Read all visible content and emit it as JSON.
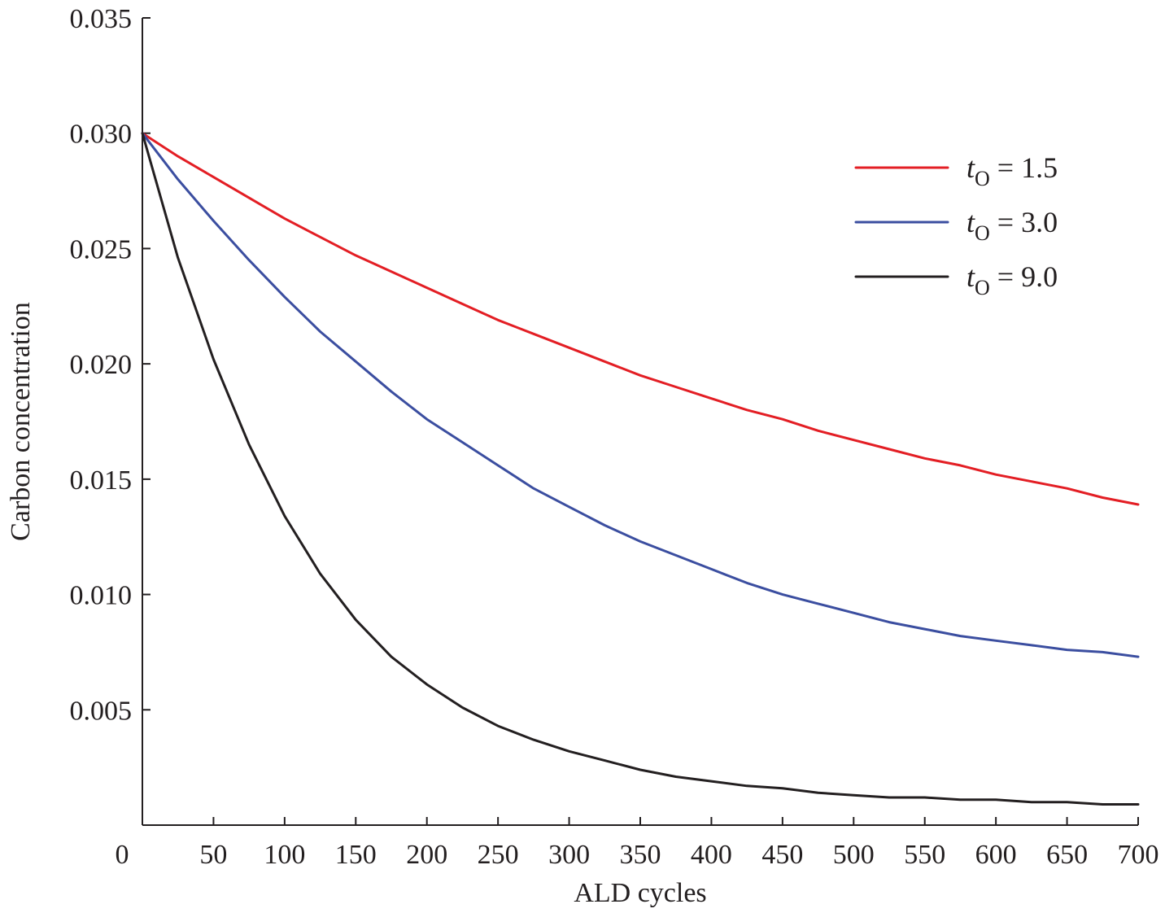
{
  "chart_data": {
    "type": "line",
    "title": "",
    "xlabel": "ALD cycles",
    "ylabel": "Carbon concentration",
    "xlim": [
      0,
      700
    ],
    "ylim": [
      0,
      0.035
    ],
    "x_ticks": [
      0,
      50,
      100,
      150,
      200,
      250,
      300,
      350,
      400,
      450,
      500,
      550,
      600,
      650,
      700
    ],
    "x_tick_labels": [
      "0",
      "50",
      "100",
      "150",
      "200",
      "250",
      "300",
      "350",
      "400",
      "450",
      "500",
      "550",
      "600",
      "650",
      "700"
    ],
    "y_ticks": [
      0.005,
      0.01,
      0.015,
      0.02,
      0.025,
      0.03,
      0.035
    ],
    "y_tick_labels": [
      "0.005",
      "0.010",
      "0.015",
      "0.020",
      "0.025",
      "0.030",
      "0.035"
    ],
    "grid": false,
    "legend_position": "top-right",
    "x": [
      0,
      25,
      50,
      75,
      100,
      125,
      150,
      175,
      200,
      225,
      250,
      275,
      300,
      325,
      350,
      375,
      400,
      425,
      450,
      475,
      500,
      525,
      550,
      575,
      600,
      625,
      650,
      675,
      700
    ],
    "series": [
      {
        "name": "t_O = 1.5",
        "legend_text": "t",
        "legend_subscript": "O",
        "legend_value": " = 1.5",
        "color": "#e31e24",
        "values": [
          0.03,
          0.029,
          0.0281,
          0.0272,
          0.0263,
          0.0255,
          0.0247,
          0.024,
          0.0233,
          0.0226,
          0.0219,
          0.0213,
          0.0207,
          0.0201,
          0.0195,
          0.019,
          0.0185,
          0.018,
          0.0176,
          0.0171,
          0.0167,
          0.0163,
          0.0159,
          0.0156,
          0.0152,
          0.0149,
          0.0146,
          0.0142,
          0.0139
        ]
      },
      {
        "name": "t_O = 3.0",
        "legend_text": "t",
        "legend_subscript": "O",
        "legend_value": " = 3.0",
        "color": "#3b4ea0",
        "values": [
          0.03,
          0.028,
          0.0262,
          0.0245,
          0.0229,
          0.0214,
          0.0201,
          0.0188,
          0.0176,
          0.0166,
          0.0156,
          0.0146,
          0.0138,
          0.013,
          0.0123,
          0.0117,
          0.0111,
          0.0105,
          0.01,
          0.0096,
          0.0092,
          0.0088,
          0.0085,
          0.0082,
          0.008,
          0.0078,
          0.0076,
          0.0075,
          0.0073
        ]
      },
      {
        "name": "t_O = 9.0",
        "legend_text": "t",
        "legend_subscript": "O",
        "legend_value": " = 9.0",
        "color": "#231f20",
        "values": [
          0.03,
          0.0246,
          0.0202,
          0.0165,
          0.0134,
          0.0109,
          0.0089,
          0.0073,
          0.0061,
          0.0051,
          0.0043,
          0.0037,
          0.0032,
          0.0028,
          0.0024,
          0.0021,
          0.0019,
          0.0017,
          0.0016,
          0.0014,
          0.0013,
          0.0012,
          0.0012,
          0.0011,
          0.0011,
          0.001,
          0.001,
          0.0009,
          0.0009
        ]
      }
    ]
  }
}
